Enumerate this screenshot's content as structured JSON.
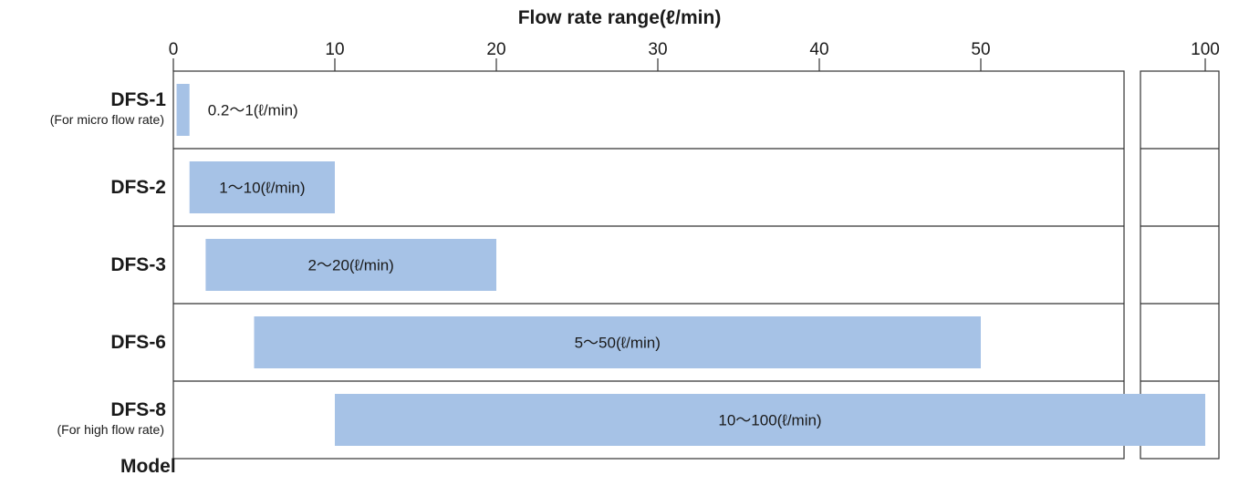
{
  "chart_data": {
    "type": "bar",
    "orientation": "horizontal",
    "title": "Flow rate range(ℓ/min)",
    "ylabel": "Model",
    "xlim": [
      0,
      100
    ],
    "axis_break": [
      55,
      95
    ],
    "x_ticks": [
      "0",
      "10",
      "20",
      "30",
      "40",
      "50",
      "100"
    ],
    "x_tick_values": [
      0,
      10,
      20,
      30,
      40,
      50,
      100
    ],
    "bar_color": "#a6c2e6",
    "rows": [
      {
        "model": "DFS-1",
        "note": "(For micro flow rate)",
        "min": 0.2,
        "max": 1,
        "label": "0.2〜1(ℓ/min)"
      },
      {
        "model": "DFS-2",
        "note": "",
        "min": 1,
        "max": 10,
        "label": "1〜10(ℓ/min)"
      },
      {
        "model": "DFS-3",
        "note": "",
        "min": 2,
        "max": 20,
        "label": "2〜20(ℓ/min)"
      },
      {
        "model": "DFS-6",
        "note": "",
        "min": 5,
        "max": 50,
        "label": "5〜50(ℓ/min)"
      },
      {
        "model": "DFS-8",
        "note": "(For high flow rate)",
        "min": 10,
        "max": 100,
        "label": "10〜100(ℓ/min)"
      }
    ]
  }
}
